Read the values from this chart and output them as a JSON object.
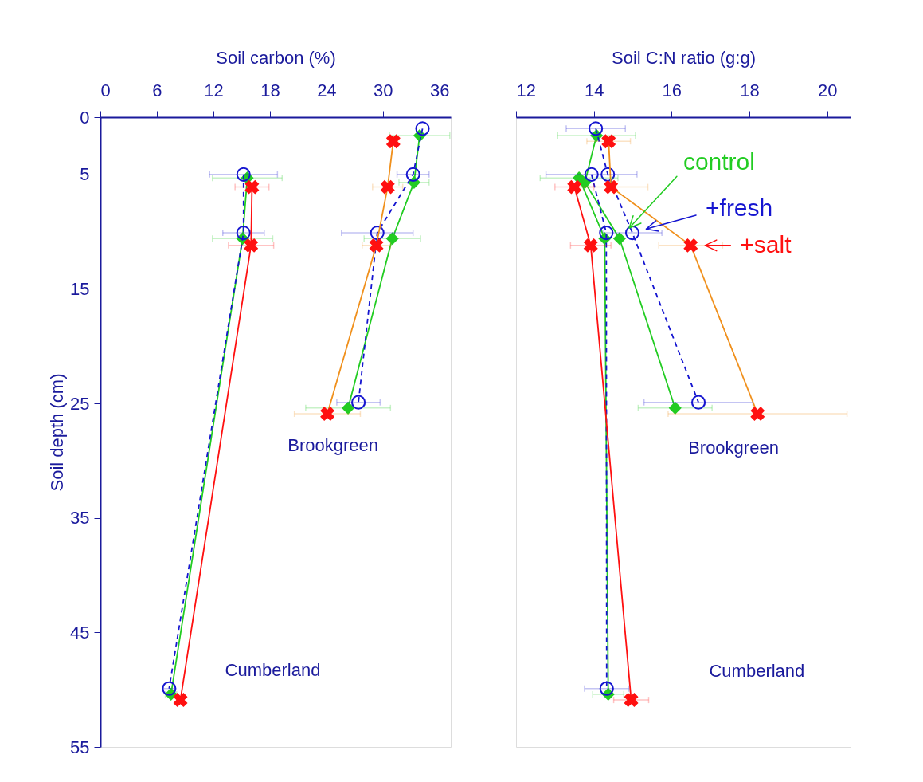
{
  "chart_data": [
    {
      "type": "line",
      "xlabel": "Soil carbon (%)",
      "ylabel": "Soil depth (cm)",
      "xlim": [
        0,
        37.2
      ],
      "xticks": [
        0,
        6,
        12,
        18,
        24,
        30,
        36
      ],
      "ylim": [
        55,
        0
      ],
      "yticks": [
        0,
        5,
        15,
        25,
        35,
        45,
        55
      ],
      "grid": false,
      "annotations": [
        "Brookgreen",
        "Cumberland"
      ],
      "series": [
        {
          "color": "#22cc22",
          "marker": "diamond",
          "line_style": "solid",
          "x": [
            33.9,
            33.3,
            31.0,
            26.3
          ],
          "values": [
            1.6,
            5.7,
            10.6,
            25.4
          ],
          "xerrors": [
            3.2,
            1.6,
            3.0,
            4.5
          ]
        },
        {
          "color": "#1515d0",
          "marker": "circle",
          "line_style": "dashed",
          "x": [
            34.2,
            33.2,
            29.4,
            27.4
          ],
          "values": [
            1.0,
            5.0,
            10.1,
            24.9
          ],
          "xerrors": [
            null,
            1.7,
            3.8,
            2.3
          ]
        },
        {
          "color": "#f0901c",
          "colors": [
            "#ff1010",
            "#ff1010",
            "#ff1010",
            "#ff1010"
          ],
          "marker": "cross",
          "line_style": "solid",
          "x": [
            31.1,
            30.5,
            29.3,
            24.1
          ],
          "values": [
            2.1,
            6.1,
            11.2,
            25.9
          ],
          "xerrors": [
            0.5,
            1.6,
            1.5,
            3.5
          ]
        },
        {
          "color": "#22cc22",
          "marker": "diamond",
          "line_style": "solid",
          "x": [
            15.6,
            15.1,
            7.5
          ],
          "values": [
            5.3,
            10.6,
            50.4
          ],
          "xerrors": [
            3.7,
            3.2,
            0.6
          ]
        },
        {
          "color": "#1515d0",
          "marker": "circle",
          "line_style": "dashed",
          "x": [
            15.2,
            15.2,
            7.3
          ],
          "values": [
            5.0,
            10.1,
            49.9
          ],
          "xerrors": [
            3.6,
            2.2,
            0.6
          ]
        },
        {
          "color": "#ff1010",
          "marker": "cross",
          "line_style": "solid",
          "x": [
            16.1,
            16.0,
            8.5
          ],
          "values": [
            6.1,
            11.2,
            50.9
          ],
          "xerrors": [
            1.8,
            2.4,
            null
          ]
        }
      ]
    },
    {
      "type": "line",
      "xlabel": "Soil C:N ratio (g:g)",
      "xlim": [
        12,
        20.6
      ],
      "xticks": [
        12,
        14,
        16,
        18,
        20
      ],
      "ylim": [
        55,
        0
      ],
      "yticks": [
        0,
        5,
        15,
        25,
        35,
        45,
        55
      ],
      "tick_labels": "x",
      "grid": false,
      "legend": "right",
      "annotations": [
        "Brookgreen",
        "Cumberland"
      ],
      "series": [
        {
          "name": "control",
          "color": "#22cc22",
          "marker": "diamond",
          "line_style": "solid",
          "x": [
            14.07,
            13.77,
            14.66,
            16.09
          ],
          "values": [
            1.6,
            5.7,
            10.6,
            25.4
          ],
          "xerrors": [
            1.0,
            null,
            null,
            0.95
          ]
        },
        {
          "name": "+fresh",
          "color": "#1515d0",
          "marker": "circle",
          "line_style": "dashed",
          "x": [
            14.05,
            14.36,
            14.99,
            16.69
          ],
          "values": [
            1.0,
            5.0,
            10.1,
            24.9
          ],
          "xerrors": [
            0.76,
            null,
            0.76,
            1.4
          ]
        },
        {
          "name": "+salt",
          "color": "#f0901c",
          "colors": [
            "#ff1010",
            "#ff1010",
            "#ff1010",
            "#ff1010"
          ],
          "marker": "cross",
          "line_style": "solid",
          "x": [
            14.38,
            14.44,
            16.49,
            18.21
          ],
          "values": [
            2.1,
            6.1,
            11.2,
            25.9
          ],
          "xerrors": [
            0.56,
            0.95,
            0.82,
            2.3
          ]
        },
        {
          "color": "#22cc22",
          "marker": "diamond",
          "line_style": "solid",
          "x": [
            13.62,
            14.28,
            14.37
          ],
          "values": [
            5.3,
            10.6,
            50.4
          ],
          "xerrors": [
            1.0,
            null,
            0.4
          ]
        },
        {
          "color": "#1515d0",
          "marker": "circle",
          "line_style": "dashed",
          "x": [
            13.94,
            14.32,
            14.33
          ],
          "values": [
            5.0,
            10.1,
            49.9
          ],
          "xerrors": [
            1.17,
            null,
            0.57
          ]
        },
        {
          "color": "#ff1010",
          "marker": "cross",
          "line_style": "solid",
          "x": [
            13.5,
            13.92,
            14.96
          ],
          "values": [
            6.1,
            11.2,
            50.9
          ],
          "xerrors": [
            0.5,
            0.52,
            0.45
          ]
        }
      ]
    }
  ]
}
